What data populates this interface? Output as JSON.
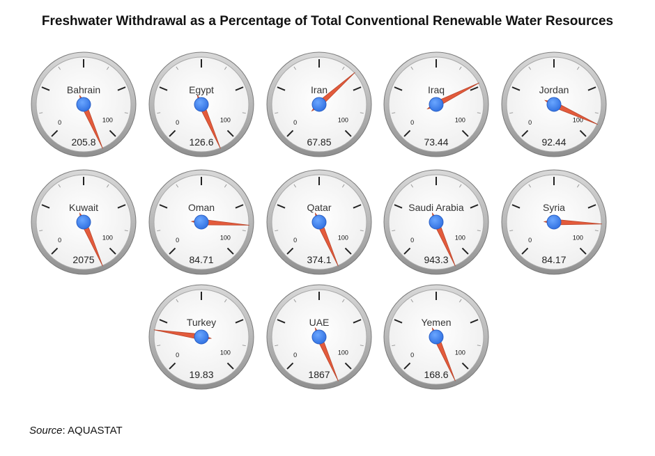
{
  "title": "Freshwater Withdrawal as a Percentage of Total Conventional Renewable Water Resources",
  "source": {
    "label": "Source",
    "separator": ": ",
    "text": "AQUASTAT"
  },
  "chart_data": {
    "type": "gauge",
    "title": "Freshwater Withdrawal as a Percentage of Total Conventional Renewable Water Resources",
    "scale": {
      "min": 0,
      "max": 100,
      "min_label": "0",
      "max_label": "100"
    },
    "colors": {
      "needle": "#e35b3c",
      "hub": "#3b82f6",
      "face": "#f4f4f4",
      "rim": "#9a9a9a"
    },
    "items": [
      {
        "name": "Bahrain",
        "value": 205.8,
        "label": "205.8"
      },
      {
        "name": "Egypt",
        "value": 126.6,
        "label": "126.6"
      },
      {
        "name": "Iran",
        "value": 67.85,
        "label": "67.85"
      },
      {
        "name": "Iraq",
        "value": 73.44,
        "label": "73.44"
      },
      {
        "name": "Jordan",
        "value": 92.44,
        "label": "92.44"
      },
      {
        "name": "Kuwait",
        "value": 2075,
        "label": "2075"
      },
      {
        "name": "Oman",
        "value": 84.71,
        "label": "84.71"
      },
      {
        "name": "Qatar",
        "value": 374.1,
        "label": "374.1"
      },
      {
        "name": "Saudi Arabia",
        "value": 943.3,
        "label": "943.3"
      },
      {
        "name": "Syria",
        "value": 84.17,
        "label": "84.17"
      },
      {
        "name": "Turkey",
        "value": 19.83,
        "label": "19.83"
      },
      {
        "name": "UAE",
        "value": 1867,
        "label": "1867"
      },
      {
        "name": "Yemen",
        "value": 168.6,
        "label": "168.6"
      }
    ]
  }
}
